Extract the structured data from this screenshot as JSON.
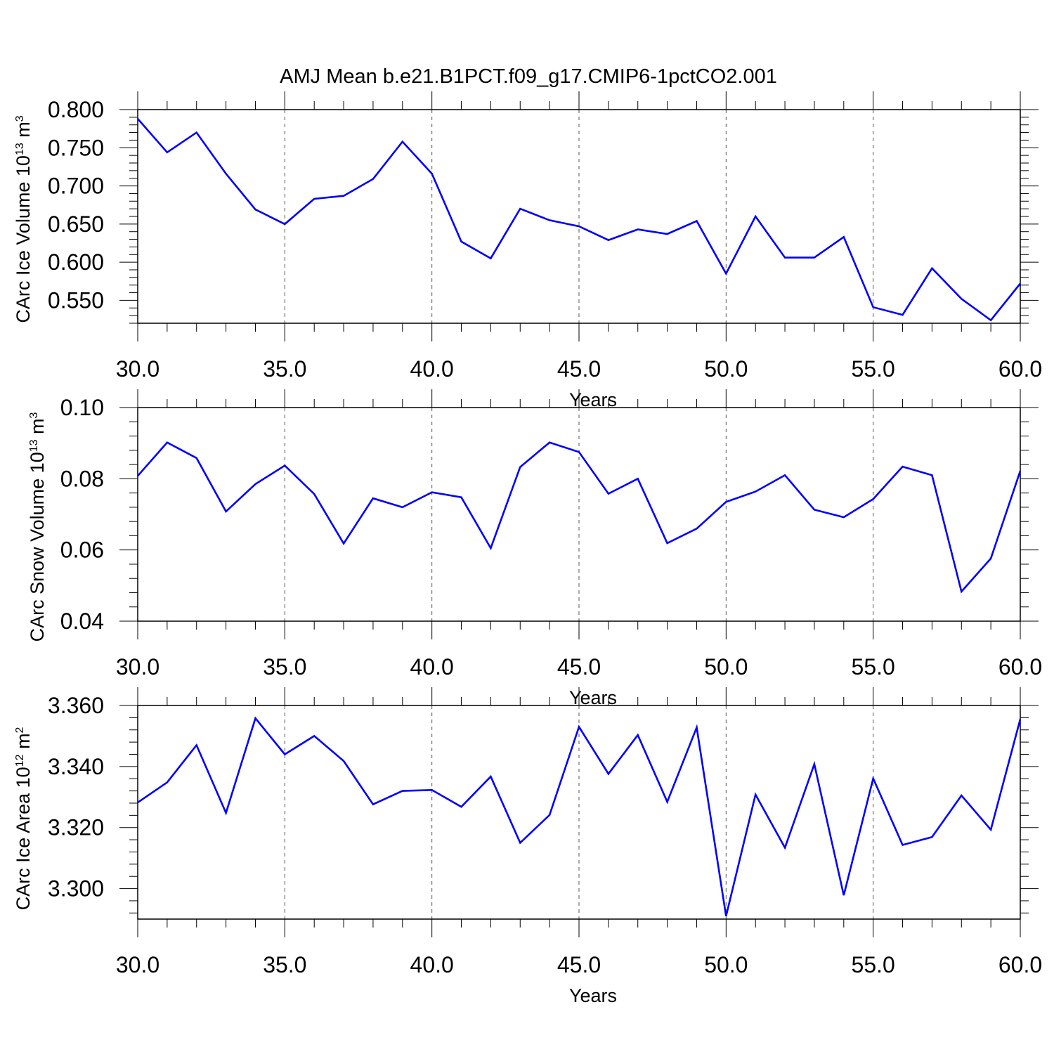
{
  "title": "AMJ Mean b.e21.B1PCT.f09_g17.CMIP6-1pctCO2.001",
  "colors": {
    "line": "#0000ff",
    "axis": "#000000",
    "grid": "#555555"
  },
  "chart_data": [
    {
      "type": "line",
      "ylabel_parts": [
        "CArc Ice Volume 10",
        "13",
        " m",
        "3"
      ],
      "xlabel": "Years",
      "xlim": [
        30,
        60
      ],
      "ylim": [
        0.52,
        0.8
      ],
      "xticks": [
        30,
        35,
        40,
        45,
        50,
        55,
        60
      ],
      "xtick_labels": [
        "30.0",
        "35.0",
        "40.0",
        "45.0",
        "50.0",
        "55.0",
        "60.0"
      ],
      "yticks": [
        0.55,
        0.6,
        0.65,
        0.7,
        0.75,
        0.8
      ],
      "ytick_labels": [
        "0.550",
        "0.600",
        "0.650",
        "0.700",
        "0.750",
        "0.800"
      ],
      "x": [
        30,
        31,
        32,
        33,
        34,
        35,
        36,
        37,
        38,
        39,
        40,
        41,
        42,
        43,
        44,
        45,
        46,
        47,
        48,
        49,
        50,
        51,
        52,
        53,
        54,
        55,
        56,
        57,
        58,
        59,
        60
      ],
      "series": [
        {
          "values": [
            0.788,
            0.744,
            0.77,
            0.716,
            0.669,
            0.65,
            0.683,
            0.687,
            0.709,
            0.758,
            0.716,
            0.627,
            0.605,
            0.67,
            0.655,
            0.647,
            0.629,
            0.643,
            0.637,
            0.654,
            0.585,
            0.66,
            0.606,
            0.606,
            0.633,
            0.541,
            0.531,
            0.592,
            0.552,
            0.524,
            0.572
          ]
        }
      ]
    },
    {
      "type": "line",
      "ylabel_parts": [
        "CArc Snow Volume 10",
        "13",
        " m",
        "3"
      ],
      "xlabel": "Years",
      "xlim": [
        30,
        60
      ],
      "ylim": [
        0.04,
        0.1
      ],
      "xticks": [
        30,
        35,
        40,
        45,
        50,
        55,
        60
      ],
      "xtick_labels": [
        "30.0",
        "35.0",
        "40.0",
        "45.0",
        "50.0",
        "55.0",
        "60.0"
      ],
      "yticks": [
        0.04,
        0.06,
        0.08,
        0.1
      ],
      "ytick_labels": [
        "0.04",
        "0.06",
        "0.08",
        "0.10"
      ],
      "x": [
        30,
        31,
        32,
        33,
        34,
        35,
        36,
        37,
        38,
        39,
        40,
        41,
        42,
        43,
        44,
        45,
        46,
        47,
        48,
        49,
        50,
        51,
        52,
        53,
        54,
        55,
        56,
        57,
        58,
        59,
        60
      ],
      "series": [
        {
          "values": [
            0.0808,
            0.0902,
            0.0858,
            0.0708,
            0.0785,
            0.0837,
            0.0757,
            0.0618,
            0.0745,
            0.072,
            0.0762,
            0.0748,
            0.0605,
            0.0833,
            0.0902,
            0.0875,
            0.0758,
            0.08,
            0.0619,
            0.066,
            0.0735,
            0.0764,
            0.081,
            0.0713,
            0.0692,
            0.0743,
            0.0834,
            0.081,
            0.0483,
            0.0576,
            0.0822
          ]
        }
      ]
    },
    {
      "type": "line",
      "ylabel_parts": [
        "CArc Ice Area 10",
        "12",
        " m",
        "2"
      ],
      "xlabel": "Years",
      "xlim": [
        30,
        60
      ],
      "ylim": [
        3.29,
        3.36
      ],
      "xticks": [
        30,
        35,
        40,
        45,
        50,
        55,
        60
      ],
      "xtick_labels": [
        "30.0",
        "35.0",
        "40.0",
        "45.0",
        "50.0",
        "55.0",
        "60.0"
      ],
      "yticks": [
        3.3,
        3.32,
        3.34,
        3.36
      ],
      "ytick_labels": [
        "3.300",
        "3.320",
        "3.340",
        "3.360"
      ],
      "x": [
        30,
        31,
        32,
        33,
        34,
        35,
        36,
        37,
        38,
        39,
        40,
        41,
        42,
        43,
        44,
        45,
        46,
        47,
        48,
        49,
        50,
        51,
        52,
        53,
        54,
        55,
        56,
        57,
        58,
        59,
        60
      ],
      "series": [
        {
          "values": [
            3.3282,
            3.3348,
            3.347,
            3.3248,
            3.3558,
            3.344,
            3.35,
            3.3418,
            3.3276,
            3.332,
            3.3323,
            3.3268,
            3.3367,
            3.315,
            3.3241,
            3.353,
            3.3376,
            3.3503,
            3.3284,
            3.3528,
            3.291,
            3.3308,
            3.3134,
            3.3408,
            3.2978,
            3.3361,
            3.3143,
            3.3169,
            3.3305,
            3.3193,
            3.3555
          ]
        }
      ]
    }
  ]
}
